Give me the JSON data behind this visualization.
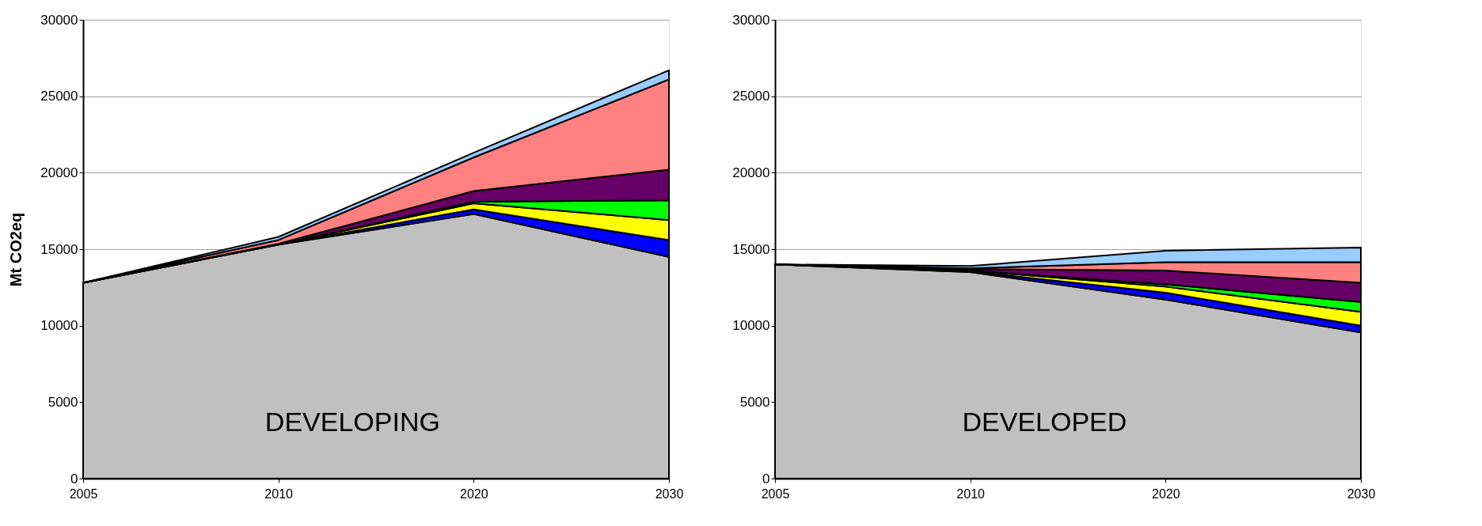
{
  "chart_data": [
    {
      "type": "area",
      "stacked": true,
      "categories": [
        "2005",
        "2010",
        "2020",
        "2030"
      ],
      "ylabel": "Mt CO2eq",
      "ylim": [
        0,
        30000
      ],
      "yticks": [
        0,
        5000,
        10000,
        15000,
        20000,
        25000,
        30000
      ],
      "grid": "y",
      "annotations": [
        "DEVELOPING"
      ],
      "series": [
        {
          "color": "#c0c0c0",
          "values": [
            12800,
            15300,
            17300,
            14500
          ]
        },
        {
          "color": "#0000ff",
          "values": [
            0,
            0,
            300,
            1100
          ]
        },
        {
          "color": "#ffff00",
          "values": [
            0,
            0,
            400,
            1300
          ]
        },
        {
          "color": "#00ff00",
          "values": [
            0,
            0,
            100,
            1300
          ]
        },
        {
          "color": "#660066",
          "values": [
            0,
            50,
            700,
            2000
          ]
        },
        {
          "color": "#ff8080",
          "values": [
            0,
            250,
            2200,
            5900
          ]
        },
        {
          "color": "#99ccff",
          "values": [
            0,
            200,
            300,
            600
          ]
        }
      ]
    },
    {
      "type": "area",
      "stacked": true,
      "categories": [
        "2005",
        "2010",
        "2020",
        "2030"
      ],
      "ylim": [
        0,
        30000
      ],
      "yticks": [
        0,
        5000,
        10000,
        15000,
        20000,
        25000,
        30000
      ],
      "grid": "y",
      "annotations": [
        "DEVELOPED"
      ],
      "series": [
        {
          "color": "#c0c0c0",
          "values": [
            14000,
            13500,
            11700,
            9550
          ]
        },
        {
          "color": "#0000ff",
          "values": [
            0,
            50,
            450,
            450
          ]
        },
        {
          "color": "#ffff00",
          "values": [
            0,
            50,
            400,
            900
          ]
        },
        {
          "color": "#00ff00",
          "values": [
            0,
            0,
            150,
            650
          ]
        },
        {
          "color": "#660066",
          "values": [
            0,
            100,
            900,
            1250
          ]
        },
        {
          "color": "#ff8080",
          "values": [
            0,
            50,
            550,
            1350
          ]
        },
        {
          "color": "#99ccff",
          "values": [
            0,
            150,
            750,
            950
          ]
        }
      ]
    }
  ]
}
